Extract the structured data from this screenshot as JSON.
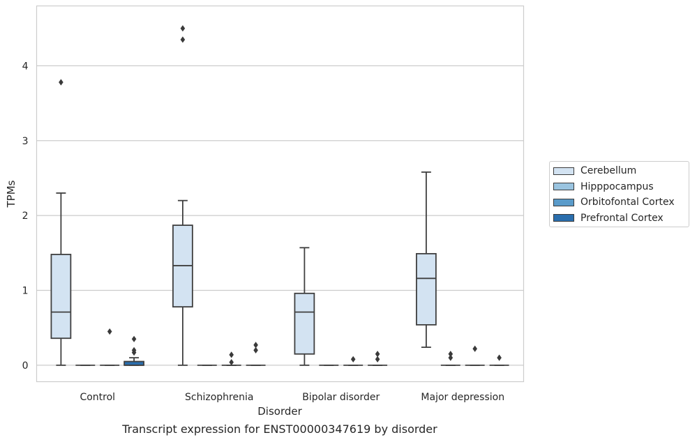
{
  "chart_data": {
    "type": "box",
    "title": "Transcript expression for ENST00000347619 by disorder",
    "xlabel": "Disorder",
    "ylabel": "TPMs",
    "categories": [
      "Control",
      "Schizophrenia",
      "Bipolar disorder",
      "Major depression"
    ],
    "ylim": [
      -0.22,
      4.8
    ],
    "yticks": [
      0,
      1,
      2,
      3,
      4
    ],
    "grid": true,
    "legend_position": "right",
    "series": [
      {
        "name": "Cerebellum",
        "color": "#d3e3f2",
        "boxes": [
          {
            "min": 0.0,
            "q1": 0.36,
            "median": 0.71,
            "q3": 1.48,
            "max": 2.3,
            "outliers": [
              3.78
            ]
          },
          {
            "min": 0.0,
            "q1": 0.78,
            "median": 1.33,
            "q3": 1.87,
            "max": 2.2,
            "outliers": [
              4.35,
              4.5
            ]
          },
          {
            "min": 0.0,
            "q1": 0.15,
            "median": 0.71,
            "q3": 0.96,
            "max": 1.57,
            "outliers": []
          },
          {
            "min": 0.24,
            "q1": 0.54,
            "median": 1.16,
            "q3": 1.49,
            "max": 2.58,
            "outliers": []
          }
        ]
      },
      {
        "name": "Hipppocampus",
        "color": "#9ac4e0",
        "boxes": [
          {
            "min": 0.0,
            "q1": 0.0,
            "median": 0.0,
            "q3": 0.0,
            "max": 0.0,
            "outliers": []
          },
          {
            "min": 0.0,
            "q1": 0.0,
            "median": 0.0,
            "q3": 0.0,
            "max": 0.0,
            "outliers": []
          },
          {
            "min": 0.0,
            "q1": 0.0,
            "median": 0.0,
            "q3": 0.0,
            "max": 0.0,
            "outliers": []
          },
          {
            "min": 0.0,
            "q1": 0.0,
            "median": 0.0,
            "q3": 0.0,
            "max": 0.0,
            "outliers": [
              0.1,
              0.15
            ]
          }
        ]
      },
      {
        "name": "Orbitofontal Cortex",
        "color": "#5a9bca",
        "boxes": [
          {
            "min": 0.0,
            "q1": 0.0,
            "median": 0.0,
            "q3": 0.0,
            "max": 0.0,
            "outliers": [
              0.45
            ]
          },
          {
            "min": 0.0,
            "q1": 0.0,
            "median": 0.0,
            "q3": 0.0,
            "max": 0.0,
            "outliers": [
              0.04,
              0.14
            ]
          },
          {
            "min": 0.0,
            "q1": 0.0,
            "median": 0.0,
            "q3": 0.0,
            "max": 0.0,
            "outliers": [
              0.08
            ]
          },
          {
            "min": 0.0,
            "q1": 0.0,
            "median": 0.0,
            "q3": 0.0,
            "max": 0.0,
            "outliers": [
              0.22
            ]
          }
        ]
      },
      {
        "name": "Prefrontal Cortex",
        "color": "#2a6ead",
        "boxes": [
          {
            "min": 0.0,
            "q1": 0.0,
            "median": 0.0,
            "q3": 0.05,
            "max": 0.1,
            "outliers": [
              0.17,
              0.2,
              0.35
            ]
          },
          {
            "min": 0.0,
            "q1": 0.0,
            "median": 0.0,
            "q3": 0.0,
            "max": 0.0,
            "outliers": [
              0.2,
              0.27
            ]
          },
          {
            "min": 0.0,
            "q1": 0.0,
            "median": 0.0,
            "q3": 0.0,
            "max": 0.0,
            "outliers": [
              0.08,
              0.15
            ]
          },
          {
            "min": 0.0,
            "q1": 0.0,
            "median": 0.0,
            "q3": 0.0,
            "max": 0.0,
            "outliers": [
              0.1
            ]
          }
        ]
      }
    ]
  }
}
